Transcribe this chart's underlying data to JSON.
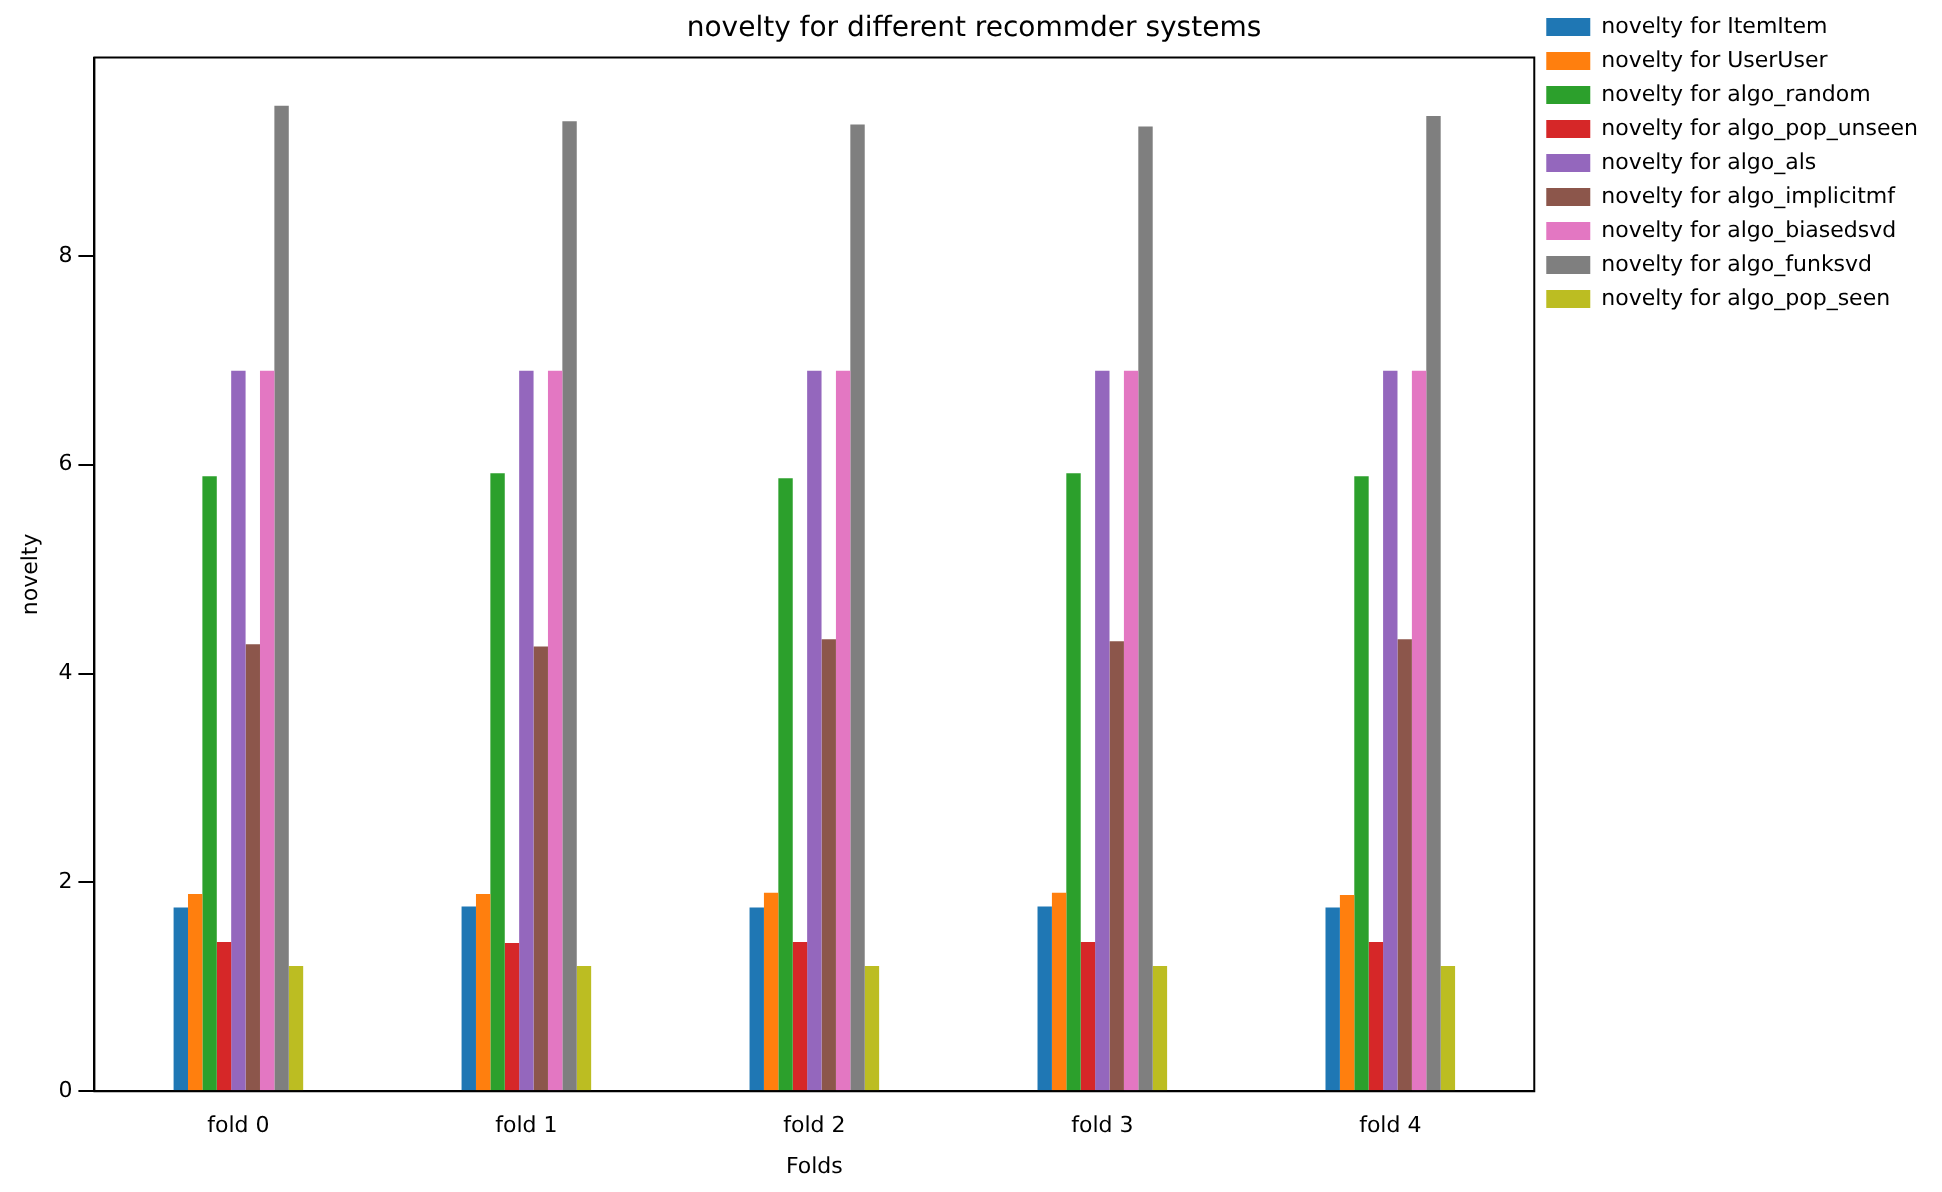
{
  "chart_data": {
    "type": "bar",
    "title": "novelty for different recommder systems",
    "xlabel": "Folds",
    "ylabel": "novelty",
    "categories": [
      "fold 0",
      "fold 1",
      "fold 2",
      "fold 3",
      "fold 4"
    ],
    "series": [
      {
        "name": "novelty for ItemItem",
        "color": "#1f77b4",
        "values": [
          1.76,
          1.77,
          1.76,
          1.77,
          1.76
        ]
      },
      {
        "name": "novelty for UserUser",
        "color": "#ff7f0e",
        "values": [
          1.89,
          1.89,
          1.9,
          1.9,
          1.88
        ]
      },
      {
        "name": "novelty for algo_random",
        "color": "#2ca02c",
        "values": [
          5.89,
          5.92,
          5.87,
          5.92,
          5.89
        ]
      },
      {
        "name": "novelty for algo_pop_unseen",
        "color": "#d62728",
        "values": [
          1.43,
          1.42,
          1.43,
          1.43,
          1.43
        ]
      },
      {
        "name": "novelty for algo_als",
        "color": "#9467bd",
        "values": [
          6.9,
          6.9,
          6.9,
          6.9,
          6.9
        ]
      },
      {
        "name": "novelty for algo_implicitmf",
        "color": "#8c564b",
        "values": [
          4.28,
          4.26,
          4.33,
          4.31,
          4.33
        ]
      },
      {
        "name": "novelty for algo_biasedsvd",
        "color": "#e377c2",
        "values": [
          6.9,
          6.9,
          6.9,
          6.9,
          6.9
        ]
      },
      {
        "name": "novelty for algo_funksvd",
        "color": "#7f7f7f",
        "values": [
          9.44,
          9.29,
          9.26,
          9.24,
          9.34
        ]
      },
      {
        "name": "novelty for algo_pop_seen",
        "color": "#bcbd22",
        "values": [
          1.2,
          1.2,
          1.2,
          1.2,
          1.2
        ]
      }
    ],
    "ylim": [
      0,
      9.9
    ],
    "yticks": [
      0,
      2,
      4,
      6,
      8
    ],
    "grid": false,
    "legend": "right"
  }
}
